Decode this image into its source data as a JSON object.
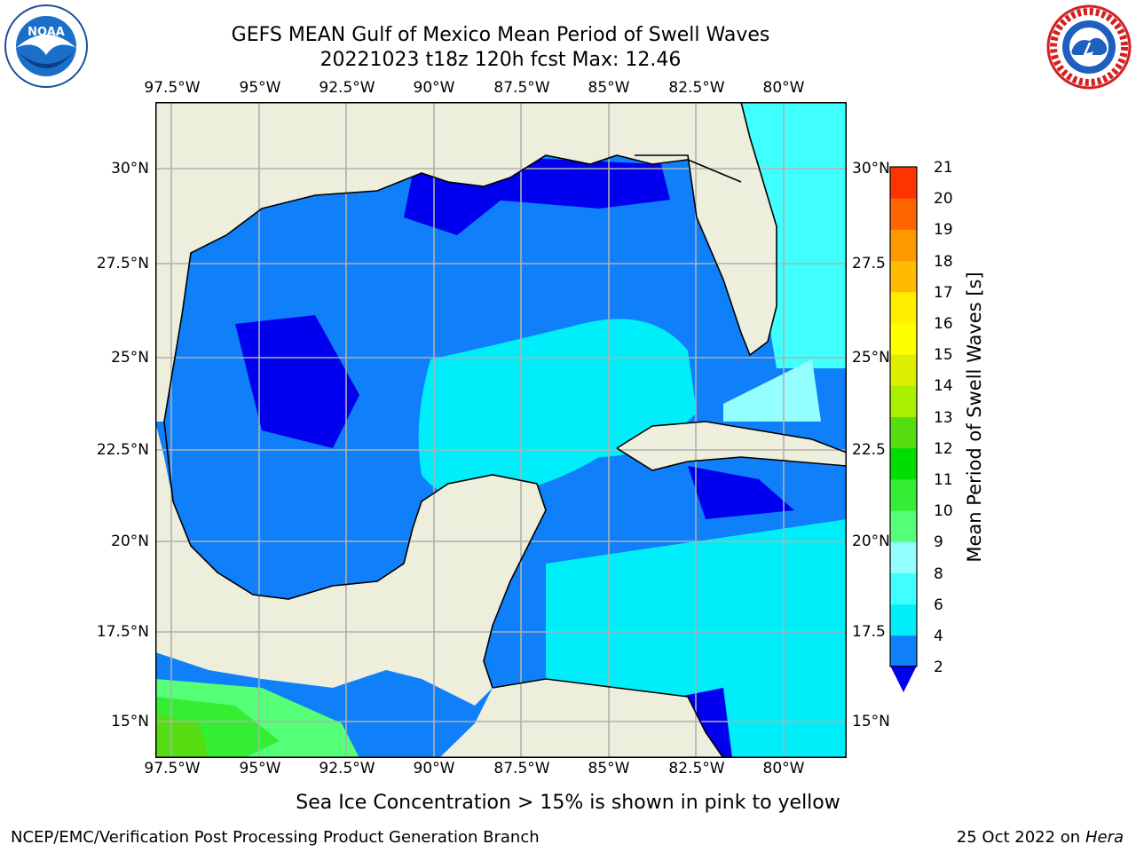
{
  "title": {
    "line1": "GEFS MEAN Gulf of Mexico Mean Period of Swell Waves",
    "line2": "20221023 t18z 120h fcst   Max: 12.46"
  },
  "map": {
    "lon_ticks": [
      "97.5°W",
      "95°W",
      "92.5°W",
      "90°W",
      "87.5°W",
      "85°W",
      "82.5°W",
      "80°W"
    ],
    "lat_ticks_left": [
      "30°N",
      "27.5°N",
      "25°N",
      "22.5°N",
      "20°N",
      "17.5°N",
      "15°N"
    ],
    "lat_ticks_right": [
      "30°N",
      "27.5",
      "25°N",
      "22.5",
      "20°N",
      "17.5",
      "15°N"
    ],
    "colors": {
      "land": "#eeeedc",
      "grid": "#b0b0b0",
      "coast": "#000000",
      "lt2": "#0000ee",
      "c2_4": "#0f7ffa",
      "c4_6": "#00eefa",
      "c6_8": "#40ffff",
      "c8_9": "#94ffff",
      "c9_10": "#55ff77",
      "c10_11": "#33ee33",
      "c11_12": "#55dd11"
    }
  },
  "colorbar": {
    "label": "Mean Period of Swell Waves [s]",
    "ticks": [
      "2",
      "4",
      "6",
      "8",
      "9",
      "10",
      "11",
      "12",
      "13",
      "14",
      "15",
      "16",
      "17",
      "18",
      "19",
      "20",
      "21"
    ],
    "colors": [
      "#0f7ffa",
      "#00eefa",
      "#40ffff",
      "#94ffff",
      "#55ff77",
      "#33ee33",
      "#00dd00",
      "#55dd11",
      "#aaee00",
      "#ddee00",
      "#ffff00",
      "#ffee00",
      "#ffbb00",
      "#ff9900",
      "#ff6600",
      "#ff3300"
    ],
    "under_color": "#0000ee"
  },
  "caption": "Sea Ice Concentration > 15% is shown in pink to yellow",
  "footer": {
    "left": "NCEP/EMC/Verification Post Processing Product Generation Branch",
    "right_date": "25 Oct 2022 on ",
    "right_machine": "Hera"
  },
  "logos": {
    "noaa_text": "NOAA",
    "nws_text": "NATIONAL WEATHER SERVICE"
  }
}
